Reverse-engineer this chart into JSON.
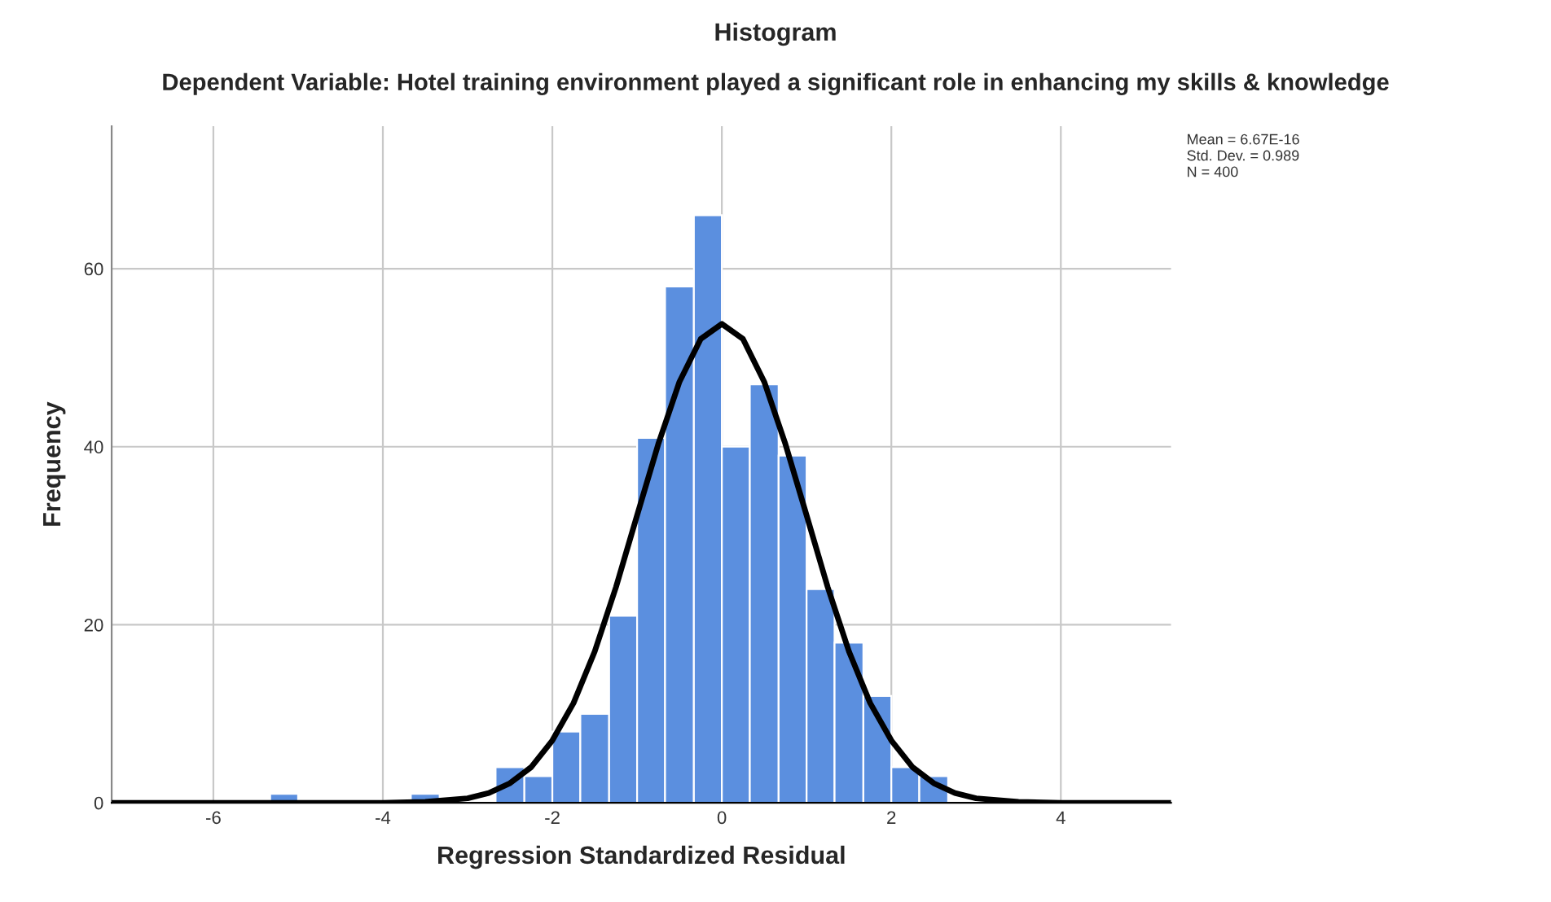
{
  "chart_data": {
    "type": "histogram",
    "title": "Histogram",
    "subtitle": "Dependent Variable: Hotel training environment played a significant role in enhancing my skills & knowledge",
    "xlabel": "Regression Standardized Residual",
    "ylabel": "Frequency",
    "bins": [
      -5.33,
      -5,
      -3.67,
      -3.33,
      -2.67,
      -2.33,
      -2,
      -1.67,
      -1.33,
      -1,
      -0.67,
      -0.33,
      0,
      0.33,
      0.67,
      1,
      1.33,
      1.67,
      2,
      2.33,
      2.67
    ],
    "values": [
      1,
      0,
      1,
      0,
      4,
      3,
      8,
      10,
      21,
      41,
      58,
      66,
      40,
      47,
      39,
      24,
      18,
      12,
      4,
      3
    ],
    "color": "#5b8fdf",
    "series": [
      {
        "type": "line",
        "color": "#000000",
        "x": [
          -7.2,
          -4,
          -3.5,
          -3,
          -2.75,
          -2.5,
          -2.25,
          -2,
          -1.75,
          -1.5,
          -1.25,
          -1,
          -0.75,
          -0.5,
          -0.25,
          0,
          0.25,
          0.5,
          0.75,
          1,
          1.25,
          1.5,
          1.75,
          2,
          2.25,
          2.5,
          2.75,
          3,
          3.5,
          4,
          5.3
        ],
        "values": [
          0,
          0,
          0.1,
          0.5,
          1.1,
          2.2,
          4.0,
          7.0,
          11.2,
          17.0,
          24.2,
          32.3,
          40.3,
          47.3,
          52.1,
          53.8,
          52.1,
          47.3,
          40.3,
          32.3,
          24.2,
          17.0,
          11.2,
          7.0,
          4.0,
          2.2,
          1.1,
          0.5,
          0.1,
          0,
          0
        ]
      }
    ],
    "xlim": [
      -7.2,
      5.3
    ],
    "xticks": [
      -6,
      -4,
      -2,
      0,
      2,
      4
    ],
    "ylim": [
      0,
      76
    ],
    "yticks": [
      0,
      20,
      40,
      60
    ],
    "grid": true,
    "annotations": [
      "Mean = 6.67E-16",
      "Std. Dev. = 0.989",
      "N = 400"
    ]
  }
}
